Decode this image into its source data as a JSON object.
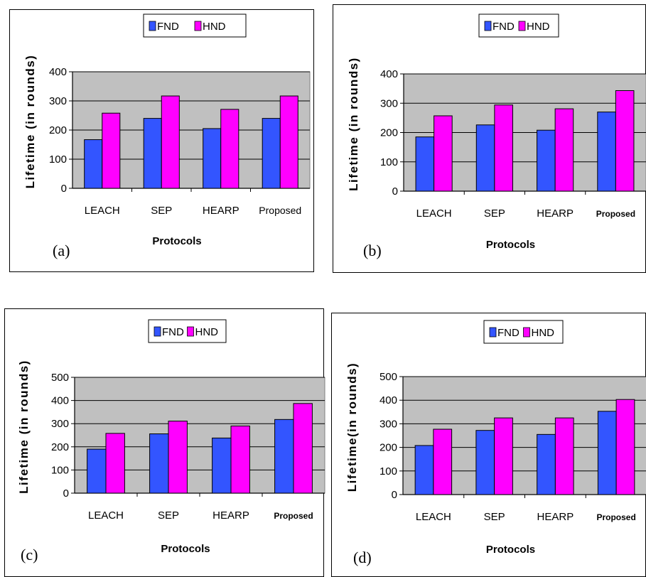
{
  "chart_data": [
    {
      "type": "bar",
      "panel_label": "(a)",
      "ylabel": "Lifetime (in rounds)",
      "xlabel": "Protocols",
      "categories": [
        "LEACH",
        "SEP",
        "HEARP",
        "Proposed"
      ],
      "proposed_bold": false,
      "ylim": [
        0,
        400
      ],
      "yticks": [
        0,
        100,
        200,
        300,
        400
      ],
      "grid": true,
      "legend_position": "top",
      "series": [
        {
          "name": "FND",
          "color": "#3355ff",
          "values": [
            167,
            240,
            205,
            240
          ]
        },
        {
          "name": "HND",
          "color": "#ff00ff",
          "values": [
            258,
            317,
            271,
            317
          ]
        }
      ]
    },
    {
      "type": "bar",
      "panel_label": "(b)",
      "ylabel": "Lifetime (in rounds)",
      "xlabel": "Protocols",
      "categories": [
        "LEACH",
        "SEP",
        "HEARP",
        "Proposed"
      ],
      "proposed_bold": true,
      "ylim": [
        0,
        400
      ],
      "yticks": [
        0,
        100,
        200,
        300,
        400
      ],
      "grid": true,
      "legend_position": "top",
      "series": [
        {
          "name": "FND",
          "color": "#3355ff",
          "values": [
            185,
            226,
            208,
            270
          ]
        },
        {
          "name": "HND",
          "color": "#ff00ff",
          "values": [
            257,
            294,
            281,
            343
          ]
        }
      ]
    },
    {
      "type": "bar",
      "panel_label": "(c)",
      "ylabel": "Lifetime (in rounds)",
      "xlabel": "Protocols",
      "categories": [
        "LEACH",
        "SEP",
        "HEARP",
        "Proposed"
      ],
      "proposed_bold": true,
      "ylim": [
        0,
        500
      ],
      "yticks": [
        0,
        100,
        200,
        300,
        400,
        500
      ],
      "grid": true,
      "legend_position": "top",
      "series": [
        {
          "name": "FND",
          "color": "#3355ff",
          "values": [
            190,
            256,
            238,
            318
          ]
        },
        {
          "name": "HND",
          "color": "#ff00ff",
          "values": [
            258,
            311,
            290,
            387
          ]
        }
      ]
    },
    {
      "type": "bar",
      "panel_label": "(d)",
      "ylabel": "Lifetime(in rounds)",
      "xlabel": "Protocols",
      "categories": [
        "LEACH",
        "SEP",
        "HEARP",
        "Proposed"
      ],
      "proposed_bold": true,
      "ylim": [
        0,
        500
      ],
      "yticks": [
        0,
        100,
        200,
        300,
        400,
        500
      ],
      "grid": true,
      "legend_position": "top",
      "series": [
        {
          "name": "FND",
          "color": "#3355ff",
          "values": [
            208,
            272,
            255,
            353
          ]
        },
        {
          "name": "HND",
          "color": "#ff00ff",
          "values": [
            277,
            325,
            325,
            403
          ]
        }
      ]
    }
  ]
}
